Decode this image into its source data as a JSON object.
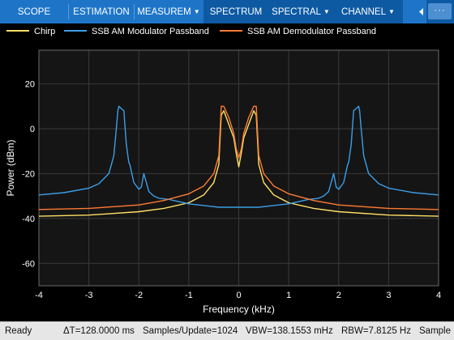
{
  "toolstrip": {
    "tabs": [
      {
        "label": "SCOPE",
        "menu": false,
        "selected": false
      },
      {
        "label": "ESTIMATION",
        "menu": false,
        "selected": false
      },
      {
        "label": "MEASUREM",
        "menu": true,
        "selected": false
      },
      {
        "label": "SPECTRUM",
        "menu": false,
        "selected": true
      },
      {
        "label": "SPECTRAL",
        "menu": true,
        "selected": true
      },
      {
        "label": "CHANNEL",
        "menu": true,
        "selected": true
      }
    ],
    "more_icon": "ellipsis-icon",
    "collapse_icon": "collapse-toolstrip-icon"
  },
  "colors": {
    "toolstrip": "#1e75c8",
    "toolstrip_selected": "#0d5aa3",
    "plot_bg": "#151515",
    "grid": "#3a3a3a",
    "axis_text": "#ffffff"
  },
  "chart_data": {
    "type": "line",
    "title": "",
    "xlabel": "Frequency (kHz)",
    "ylabel": "Power (dBm)",
    "xlim": [
      -4,
      4
    ],
    "ylim": [
      -70,
      35
    ],
    "xticks": [
      -4,
      -3,
      -2,
      -1,
      0,
      1,
      2,
      3,
      4
    ],
    "yticks": [
      20,
      0,
      -20,
      -40,
      -60
    ],
    "grid": true,
    "legend_position": "top",
    "series": [
      {
        "name": "Chirp",
        "color": "#ffe066",
        "x": [
          -4,
          -3,
          -2,
          -1.5,
          -1,
          -0.7,
          -0.5,
          -0.4,
          -0.35,
          -0.3,
          -0.2,
          -0.1,
          -0.05,
          0,
          0.05,
          0.1,
          0.2,
          0.3,
          0.35,
          0.4,
          0.5,
          0.7,
          1,
          1.5,
          2,
          3,
          4
        ],
        "y": [
          -39,
          -38.5,
          -37,
          -35.5,
          -33,
          -29.5,
          -24,
          -16,
          6,
          8,
          2,
          -4,
          -11,
          -17,
          -11,
          -4,
          2,
          8,
          6,
          -16,
          -24,
          -29.5,
          -33,
          -35.5,
          -37,
          -38.5,
          -39
        ]
      },
      {
        "name": "SSB AM Modulator Passband",
        "color": "#3c9ee8",
        "x": [
          -4,
          -3.5,
          -3,
          -2.8,
          -2.6,
          -2.5,
          -2.45,
          -2.42,
          -2.4,
          -2.35,
          -2.3,
          -2.25,
          -2.2,
          -2.18,
          -2.1,
          -2.0,
          -1.95,
          -1.9,
          -1.8,
          -1.7,
          -1.6,
          -1.4,
          -1.2,
          -1.0,
          -0.8,
          -0.6,
          -0.4,
          -0.2,
          0,
          0.2,
          0.4,
          0.6,
          0.8,
          1.0,
          1.2,
          1.4,
          1.6,
          1.7,
          1.8,
          1.9,
          1.95,
          2.0,
          2.1,
          2.18,
          2.2,
          2.25,
          2.3,
          2.35,
          2.4,
          2.42,
          2.45,
          2.5,
          2.6,
          2.8,
          3,
          3.5,
          4
        ],
        "y": [
          -29.5,
          -28.5,
          -26.5,
          -24.5,
          -20,
          -12,
          0,
          8,
          10,
          9,
          8,
          -7,
          -15,
          -16,
          -24,
          -27,
          -26,
          -20,
          -28,
          -30,
          -31,
          -31.5,
          -32.5,
          -33.5,
          -34,
          -34.5,
          -35,
          -35,
          -35,
          -35,
          -35,
          -34.5,
          -34,
          -33.5,
          -32.5,
          -31.5,
          -31,
          -30,
          -28,
          -20,
          -26,
          -27,
          -24,
          -16,
          -15,
          -7,
          8,
          9,
          10,
          8,
          0,
          -12,
          -20,
          -24.5,
          -26.5,
          -28.5,
          -29.5
        ]
      },
      {
        "name": "SSB AM Demodulator Passband",
        "color": "#ff7a33",
        "x": [
          -4,
          -3,
          -2,
          -1.5,
          -1,
          -0.7,
          -0.5,
          -0.4,
          -0.35,
          -0.3,
          -0.2,
          -0.1,
          -0.05,
          0,
          0.05,
          0.1,
          0.2,
          0.3,
          0.35,
          0.4,
          0.5,
          0.7,
          1,
          1.5,
          2,
          3,
          4
        ],
        "y": [
          -36,
          -35.5,
          -34,
          -32,
          -29,
          -25.5,
          -20,
          -12,
          10,
          10,
          5,
          -2,
          -9,
          -13,
          -9,
          -2,
          5,
          10,
          10,
          -12,
          -20,
          -25.5,
          -29,
          -32,
          -34,
          -35.5,
          -36
        ]
      }
    ]
  },
  "status": {
    "state": "Ready",
    "delta_t": "ΔT=128.0000 ms",
    "samples_update": "Samples/Update=1024",
    "vbw": "VBW=138.1553 mHz",
    "rbw": "RBW=7.8125 Hz",
    "sample": "Sample"
  }
}
